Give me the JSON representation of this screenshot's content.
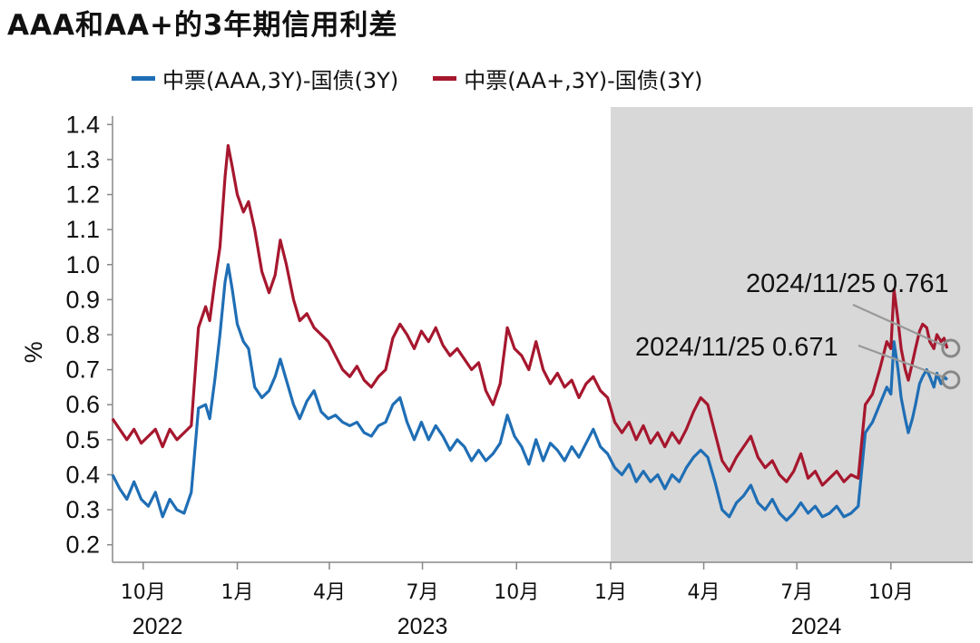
{
  "title": "AAA和AA+的3年期信用利差",
  "colors": {
    "aaa": "#1F6EB5",
    "aaplus": "#A6172E",
    "shade": "#D8D8D8"
  },
  "chart_data": {
    "type": "line",
    "title": "AAA和AA+的3年期信用利差",
    "ylabel": "%",
    "ylim": [
      0.15,
      1.45
    ],
    "yticks": [
      0.2,
      0.3,
      0.4,
      0.5,
      0.6,
      0.7,
      0.8,
      0.9,
      1.0,
      1.1,
      1.2,
      1.3,
      1.4
    ],
    "ytick_labels": [
      "0.2",
      "0.3",
      "0.4",
      "0.5",
      "0.6",
      "0.7",
      "0.8",
      "0.9",
      "1.0",
      "1.1",
      "1.2",
      "1.3",
      "1.4"
    ],
    "xlim": [
      "2022-09-01",
      "2024-12-20"
    ],
    "xticks": [
      {
        "date": "2022-10-01",
        "label": "10月"
      },
      {
        "date": "2023-01-01",
        "label": "1月"
      },
      {
        "date": "2023-04-01",
        "label": "4月"
      },
      {
        "date": "2023-07-01",
        "label": "7月"
      },
      {
        "date": "2023-10-01",
        "label": "10月"
      },
      {
        "date": "2024-01-01",
        "label": "1月"
      },
      {
        "date": "2024-04-01",
        "label": "4月"
      },
      {
        "date": "2024-07-01",
        "label": "7月"
      },
      {
        "date": "2024-10-01",
        "label": "10月"
      }
    ],
    "year_labels": [
      {
        "date": "2022-10-15",
        "label": "2022"
      },
      {
        "date": "2023-07-01",
        "label": "2023"
      },
      {
        "date": "2024-07-20",
        "label": "2024"
      }
    ],
    "shaded_region": [
      "2024-01-01",
      "2024-12-20"
    ],
    "grid": false,
    "legend_position": "top",
    "series": [
      {
        "name": "中票(AAA,3Y)-国债(3Y)",
        "color": "#1F6EB5",
        "points": [
          [
            "2022-09-01",
            0.4
          ],
          [
            "2022-09-08",
            0.36
          ],
          [
            "2022-09-15",
            0.33
          ],
          [
            "2022-09-22",
            0.38
          ],
          [
            "2022-09-29",
            0.33
          ],
          [
            "2022-10-06",
            0.31
          ],
          [
            "2022-10-13",
            0.35
          ],
          [
            "2022-10-20",
            0.28
          ],
          [
            "2022-10-27",
            0.33
          ],
          [
            "2022-11-03",
            0.3
          ],
          [
            "2022-11-10",
            0.29
          ],
          [
            "2022-11-17",
            0.35
          ],
          [
            "2022-11-24",
            0.59
          ],
          [
            "2022-12-01",
            0.6
          ],
          [
            "2022-12-05",
            0.56
          ],
          [
            "2022-12-10",
            0.67
          ],
          [
            "2022-12-15",
            0.8
          ],
          [
            "2022-12-20",
            0.95
          ],
          [
            "2022-12-23",
            1.0
          ],
          [
            "2022-12-27",
            0.93
          ],
          [
            "2023-01-01",
            0.83
          ],
          [
            "2023-01-07",
            0.78
          ],
          [
            "2023-01-12",
            0.76
          ],
          [
            "2023-01-18",
            0.65
          ],
          [
            "2023-01-25",
            0.62
          ],
          [
            "2023-02-01",
            0.64
          ],
          [
            "2023-02-07",
            0.68
          ],
          [
            "2023-02-12",
            0.73
          ],
          [
            "2023-02-18",
            0.67
          ],
          [
            "2023-02-25",
            0.6
          ],
          [
            "2023-03-03",
            0.56
          ],
          [
            "2023-03-10",
            0.61
          ],
          [
            "2023-03-17",
            0.64
          ],
          [
            "2023-03-24",
            0.58
          ],
          [
            "2023-03-31",
            0.56
          ],
          [
            "2023-04-07",
            0.57
          ],
          [
            "2023-04-14",
            0.55
          ],
          [
            "2023-04-21",
            0.54
          ],
          [
            "2023-04-28",
            0.55
          ],
          [
            "2023-05-05",
            0.52
          ],
          [
            "2023-05-12",
            0.51
          ],
          [
            "2023-05-19",
            0.54
          ],
          [
            "2023-05-26",
            0.55
          ],
          [
            "2023-06-02",
            0.6
          ],
          [
            "2023-06-09",
            0.62
          ],
          [
            "2023-06-16",
            0.55
          ],
          [
            "2023-06-23",
            0.5
          ],
          [
            "2023-06-30",
            0.55
          ],
          [
            "2023-07-07",
            0.5
          ],
          [
            "2023-07-14",
            0.54
          ],
          [
            "2023-07-21",
            0.51
          ],
          [
            "2023-07-28",
            0.47
          ],
          [
            "2023-08-04",
            0.5
          ],
          [
            "2023-08-11",
            0.48
          ],
          [
            "2023-08-18",
            0.44
          ],
          [
            "2023-08-25",
            0.47
          ],
          [
            "2023-09-01",
            0.44
          ],
          [
            "2023-09-08",
            0.46
          ],
          [
            "2023-09-15",
            0.49
          ],
          [
            "2023-09-22",
            0.57
          ],
          [
            "2023-09-29",
            0.51
          ],
          [
            "2023-10-06",
            0.48
          ],
          [
            "2023-10-13",
            0.43
          ],
          [
            "2023-10-20",
            0.5
          ],
          [
            "2023-10-27",
            0.44
          ],
          [
            "2023-11-03",
            0.49
          ],
          [
            "2023-11-10",
            0.47
          ],
          [
            "2023-11-17",
            0.44
          ],
          [
            "2023-11-24",
            0.48
          ],
          [
            "2023-12-01",
            0.45
          ],
          [
            "2023-12-08",
            0.49
          ],
          [
            "2023-12-15",
            0.53
          ],
          [
            "2023-12-22",
            0.48
          ],
          [
            "2023-12-29",
            0.46
          ],
          [
            "2024-01-05",
            0.42
          ],
          [
            "2024-01-12",
            0.4
          ],
          [
            "2024-01-19",
            0.43
          ],
          [
            "2024-01-26",
            0.38
          ],
          [
            "2024-02-02",
            0.41
          ],
          [
            "2024-02-09",
            0.38
          ],
          [
            "2024-02-16",
            0.4
          ],
          [
            "2024-02-23",
            0.36
          ],
          [
            "2024-03-01",
            0.4
          ],
          [
            "2024-03-08",
            0.38
          ],
          [
            "2024-03-15",
            0.42
          ],
          [
            "2024-03-22",
            0.45
          ],
          [
            "2024-03-29",
            0.47
          ],
          [
            "2024-04-05",
            0.45
          ],
          [
            "2024-04-12",
            0.38
          ],
          [
            "2024-04-19",
            0.3
          ],
          [
            "2024-04-26",
            0.28
          ],
          [
            "2024-05-03",
            0.32
          ],
          [
            "2024-05-10",
            0.34
          ],
          [
            "2024-05-17",
            0.37
          ],
          [
            "2024-05-24",
            0.32
          ],
          [
            "2024-05-31",
            0.3
          ],
          [
            "2024-06-07",
            0.33
          ],
          [
            "2024-06-14",
            0.29
          ],
          [
            "2024-06-21",
            0.27
          ],
          [
            "2024-06-28",
            0.29
          ],
          [
            "2024-07-05",
            0.32
          ],
          [
            "2024-07-12",
            0.29
          ],
          [
            "2024-07-19",
            0.31
          ],
          [
            "2024-07-26",
            0.28
          ],
          [
            "2024-08-02",
            0.29
          ],
          [
            "2024-08-09",
            0.31
          ],
          [
            "2024-08-16",
            0.28
          ],
          [
            "2024-08-23",
            0.29
          ],
          [
            "2024-08-30",
            0.31
          ],
          [
            "2024-09-06",
            0.52
          ],
          [
            "2024-09-13",
            0.55
          ],
          [
            "2024-09-20",
            0.6
          ],
          [
            "2024-09-27",
            0.65
          ],
          [
            "2024-10-01",
            0.63
          ],
          [
            "2024-10-04",
            0.78
          ],
          [
            "2024-10-08",
            0.7
          ],
          [
            "2024-10-11",
            0.62
          ],
          [
            "2024-10-15",
            0.56
          ],
          [
            "2024-10-18",
            0.52
          ],
          [
            "2024-10-22",
            0.56
          ],
          [
            "2024-10-25",
            0.6
          ],
          [
            "2024-10-29",
            0.66
          ],
          [
            "2024-11-01",
            0.68
          ],
          [
            "2024-11-05",
            0.7
          ],
          [
            "2024-11-08",
            0.68
          ],
          [
            "2024-11-12",
            0.65
          ],
          [
            "2024-11-15",
            0.69
          ],
          [
            "2024-11-19",
            0.66
          ],
          [
            "2024-11-22",
            0.68
          ],
          [
            "2024-11-25",
            0.671
          ]
        ]
      },
      {
        "name": "中票(AA+,3Y)-国债(3Y)",
        "color": "#A6172E",
        "points": [
          [
            "2022-09-01",
            0.56
          ],
          [
            "2022-09-08",
            0.53
          ],
          [
            "2022-09-15",
            0.5
          ],
          [
            "2022-09-22",
            0.53
          ],
          [
            "2022-09-29",
            0.49
          ],
          [
            "2022-10-06",
            0.51
          ],
          [
            "2022-10-13",
            0.53
          ],
          [
            "2022-10-20",
            0.48
          ],
          [
            "2022-10-27",
            0.53
          ],
          [
            "2022-11-03",
            0.5
          ],
          [
            "2022-11-10",
            0.52
          ],
          [
            "2022-11-17",
            0.54
          ],
          [
            "2022-11-24",
            0.82
          ],
          [
            "2022-12-01",
            0.88
          ],
          [
            "2022-12-05",
            0.84
          ],
          [
            "2022-12-10",
            0.95
          ],
          [
            "2022-12-15",
            1.05
          ],
          [
            "2022-12-20",
            1.25
          ],
          [
            "2022-12-23",
            1.34
          ],
          [
            "2022-12-27",
            1.28
          ],
          [
            "2023-01-01",
            1.2
          ],
          [
            "2023-01-07",
            1.15
          ],
          [
            "2023-01-12",
            1.18
          ],
          [
            "2023-01-18",
            1.1
          ],
          [
            "2023-01-25",
            0.98
          ],
          [
            "2023-02-01",
            0.92
          ],
          [
            "2023-02-07",
            0.97
          ],
          [
            "2023-02-12",
            1.07
          ],
          [
            "2023-02-18",
            1.0
          ],
          [
            "2023-02-25",
            0.9
          ],
          [
            "2023-03-03",
            0.84
          ],
          [
            "2023-03-10",
            0.86
          ],
          [
            "2023-03-17",
            0.82
          ],
          [
            "2023-03-24",
            0.8
          ],
          [
            "2023-03-31",
            0.78
          ],
          [
            "2023-04-07",
            0.74
          ],
          [
            "2023-04-14",
            0.7
          ],
          [
            "2023-04-21",
            0.68
          ],
          [
            "2023-04-28",
            0.71
          ],
          [
            "2023-05-05",
            0.67
          ],
          [
            "2023-05-12",
            0.65
          ],
          [
            "2023-05-19",
            0.68
          ],
          [
            "2023-05-26",
            0.7
          ],
          [
            "2023-06-02",
            0.79
          ],
          [
            "2023-06-09",
            0.83
          ],
          [
            "2023-06-16",
            0.8
          ],
          [
            "2023-06-23",
            0.76
          ],
          [
            "2023-06-30",
            0.81
          ],
          [
            "2023-07-07",
            0.78
          ],
          [
            "2023-07-14",
            0.82
          ],
          [
            "2023-07-21",
            0.77
          ],
          [
            "2023-07-28",
            0.74
          ],
          [
            "2023-08-04",
            0.76
          ],
          [
            "2023-08-11",
            0.73
          ],
          [
            "2023-08-18",
            0.7
          ],
          [
            "2023-08-25",
            0.72
          ],
          [
            "2023-09-01",
            0.64
          ],
          [
            "2023-09-08",
            0.6
          ],
          [
            "2023-09-15",
            0.66
          ],
          [
            "2023-09-22",
            0.82
          ],
          [
            "2023-09-29",
            0.76
          ],
          [
            "2023-10-06",
            0.74
          ],
          [
            "2023-10-13",
            0.7
          ],
          [
            "2023-10-20",
            0.78
          ],
          [
            "2023-10-27",
            0.7
          ],
          [
            "2023-11-03",
            0.66
          ],
          [
            "2023-11-10",
            0.69
          ],
          [
            "2023-11-17",
            0.65
          ],
          [
            "2023-11-24",
            0.67
          ],
          [
            "2023-12-01",
            0.62
          ],
          [
            "2023-12-08",
            0.66
          ],
          [
            "2023-12-15",
            0.68
          ],
          [
            "2023-12-22",
            0.64
          ],
          [
            "2023-12-29",
            0.62
          ],
          [
            "2024-01-05",
            0.55
          ],
          [
            "2024-01-12",
            0.52
          ],
          [
            "2024-01-19",
            0.55
          ],
          [
            "2024-01-26",
            0.5
          ],
          [
            "2024-02-02",
            0.54
          ],
          [
            "2024-02-09",
            0.49
          ],
          [
            "2024-02-16",
            0.52
          ],
          [
            "2024-02-23",
            0.48
          ],
          [
            "2024-03-01",
            0.52
          ],
          [
            "2024-03-08",
            0.49
          ],
          [
            "2024-03-15",
            0.53
          ],
          [
            "2024-03-22",
            0.58
          ],
          [
            "2024-03-29",
            0.62
          ],
          [
            "2024-04-05",
            0.6
          ],
          [
            "2024-04-12",
            0.52
          ],
          [
            "2024-04-19",
            0.44
          ],
          [
            "2024-04-26",
            0.41
          ],
          [
            "2024-05-03",
            0.45
          ],
          [
            "2024-05-10",
            0.48
          ],
          [
            "2024-05-17",
            0.51
          ],
          [
            "2024-05-24",
            0.45
          ],
          [
            "2024-05-31",
            0.42
          ],
          [
            "2024-06-07",
            0.44
          ],
          [
            "2024-06-14",
            0.4
          ],
          [
            "2024-06-21",
            0.38
          ],
          [
            "2024-06-28",
            0.41
          ],
          [
            "2024-07-05",
            0.46
          ],
          [
            "2024-07-12",
            0.39
          ],
          [
            "2024-07-19",
            0.41
          ],
          [
            "2024-07-26",
            0.37
          ],
          [
            "2024-08-02",
            0.39
          ],
          [
            "2024-08-09",
            0.41
          ],
          [
            "2024-08-16",
            0.38
          ],
          [
            "2024-08-23",
            0.4
          ],
          [
            "2024-08-30",
            0.39
          ],
          [
            "2024-09-06",
            0.6
          ],
          [
            "2024-09-13",
            0.63
          ],
          [
            "2024-09-20",
            0.7
          ],
          [
            "2024-09-27",
            0.78
          ],
          [
            "2024-10-01",
            0.76
          ],
          [
            "2024-10-04",
            0.93
          ],
          [
            "2024-10-08",
            0.84
          ],
          [
            "2024-10-11",
            0.76
          ],
          [
            "2024-10-15",
            0.7
          ],
          [
            "2024-10-18",
            0.67
          ],
          [
            "2024-10-22",
            0.72
          ],
          [
            "2024-10-25",
            0.76
          ],
          [
            "2024-10-29",
            0.81
          ],
          [
            "2024-11-01",
            0.83
          ],
          [
            "2024-11-05",
            0.82
          ],
          [
            "2024-11-08",
            0.78
          ],
          [
            "2024-11-12",
            0.76
          ],
          [
            "2024-11-15",
            0.8
          ],
          [
            "2024-11-19",
            0.78
          ],
          [
            "2024-11-22",
            0.79
          ],
          [
            "2024-11-25",
            0.761
          ]
        ]
      }
    ],
    "annotations": [
      {
        "text": "2024/11/25 0.761",
        "date": "2024-11-25",
        "value": 0.761,
        "series": 1
      },
      {
        "text": "2024/11/25 0.671",
        "date": "2024-11-25",
        "value": 0.671,
        "series": 0
      }
    ]
  }
}
